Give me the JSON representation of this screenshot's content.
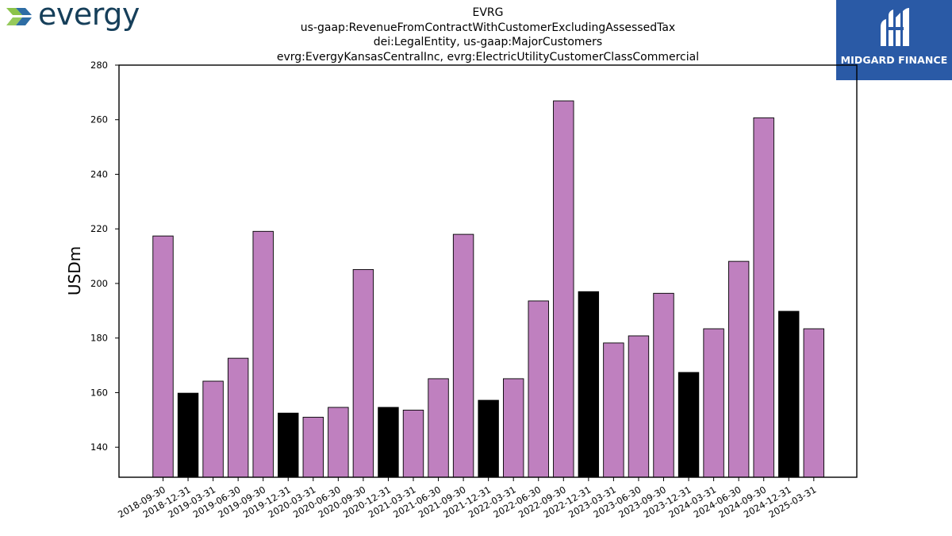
{
  "logos": {
    "left_brand": "evergy",
    "right_brand": "MIDGARD FINANCE"
  },
  "colors": {
    "bar_default": "#bf80bf",
    "bar_highlight": "#000000",
    "logo_bg": "#2a5aa6",
    "evergy_text": "#163f5a",
    "evergy_arrow_green": "#8bc34a",
    "evergy_arrow_blue": "#2e6da4"
  },
  "chart_data": {
    "type": "bar",
    "title_lines": [
      "EVRG",
      "us-gaap:RevenueFromContractWithCustomerExcludingAssessedTax",
      "dei:LegalEntity, us-gaap:MajorCustomers",
      "evrg:EvergyKansasCentralInc, evrg:ElectricUtilityCustomerClassCommercial"
    ],
    "ylabel": "USDm",
    "xlabel": "",
    "ylim": [
      129,
      280
    ],
    "yticks": [
      140,
      160,
      180,
      200,
      220,
      240,
      260,
      280
    ],
    "grid": false,
    "categories": [
      "2018-09-30",
      "2018-12-31",
      "2019-03-31",
      "2019-06-30",
      "2019-09-30",
      "2019-12-31",
      "2020-03-31",
      "2020-06-30",
      "2020-09-30",
      "2020-12-31",
      "2021-03-31",
      "2021-06-30",
      "2021-09-30",
      "2021-12-31",
      "2022-03-31",
      "2022-06-30",
      "2022-09-30",
      "2022-12-31",
      "2023-03-31",
      "2023-06-30",
      "2023-09-30",
      "2023-12-31",
      "2024-03-31",
      "2024-06-30",
      "2024-09-30",
      "2024-12-31",
      "2025-03-31"
    ],
    "values": [
      217.4,
      159.8,
      164.2,
      172.6,
      219.1,
      152.5,
      151.0,
      154.6,
      205.1,
      154.6,
      153.6,
      165.1,
      218.0,
      157.2,
      165.1,
      193.6,
      266.9,
      197.0,
      178.2,
      180.8,
      196.4,
      167.4,
      183.4,
      208.1,
      260.7,
      189.8,
      183.4
    ],
    "highlight": [
      false,
      true,
      false,
      false,
      false,
      true,
      false,
      false,
      false,
      true,
      false,
      false,
      false,
      true,
      false,
      false,
      false,
      true,
      false,
      false,
      false,
      true,
      false,
      false,
      false,
      true,
      false
    ]
  }
}
